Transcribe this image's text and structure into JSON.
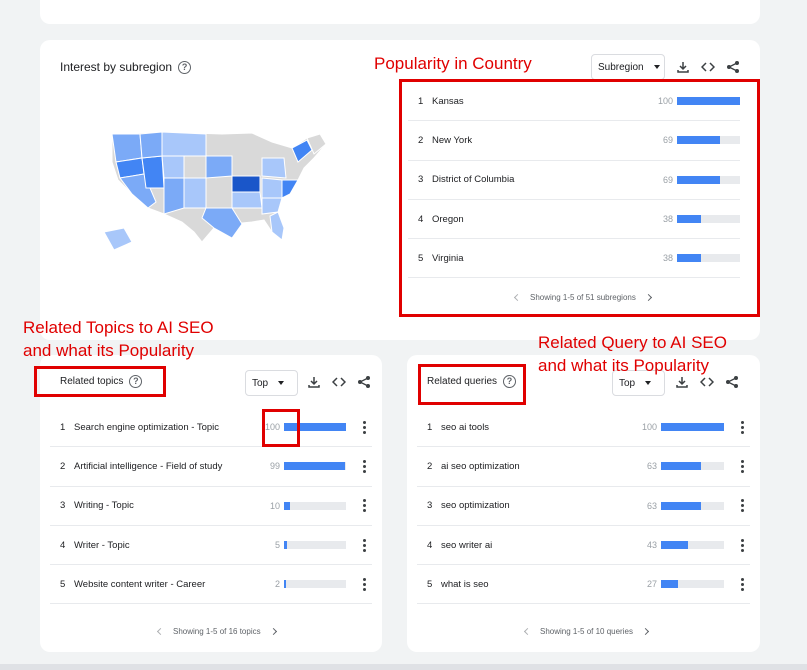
{
  "subregion": {
    "title": "Interest by subregion",
    "help_icon": "help-circle-icon",
    "dropdown_label": "Subregion",
    "pagination": "Showing 1-5 of 51 subregions",
    "items": [
      {
        "rank": "1",
        "name": "Kansas",
        "value": "100",
        "fraction": 1.0
      },
      {
        "rank": "2",
        "name": "New York",
        "value": "69",
        "fraction": 0.69
      },
      {
        "rank": "3",
        "name": "District of Columbia",
        "value": "69",
        "fraction": 0.69
      },
      {
        "rank": "4",
        "name": "Oregon",
        "value": "38",
        "fraction": 0.38
      },
      {
        "rank": "5",
        "name": "Virginia",
        "value": "38",
        "fraction": 0.38
      }
    ],
    "map_colors": {
      "light": "#a8c7fa",
      "medium": "#7baaf7",
      "strong": "#4285f4",
      "max": "#1a56c9",
      "none": "#d9d9d9"
    }
  },
  "topics": {
    "title": "Related topics",
    "dropdown_label": "Top",
    "pagination": "Showing 1-5 of 16 topics",
    "items": [
      {
        "rank": "1",
        "name": "Search engine optimization - Topic",
        "value": "100",
        "fraction": 1.0
      },
      {
        "rank": "2",
        "name": "Artificial intelligence - Field of study",
        "value": "99",
        "fraction": 0.99
      },
      {
        "rank": "3",
        "name": "Writing - Topic",
        "value": "10",
        "fraction": 0.1
      },
      {
        "rank": "4",
        "name": "Writer - Topic",
        "value": "5",
        "fraction": 0.05
      },
      {
        "rank": "5",
        "name": "Website content writer - Career",
        "value": "2",
        "fraction": 0.02
      }
    ]
  },
  "queries": {
    "title": "Related queries",
    "dropdown_label": "Top",
    "pagination": "Showing 1-5 of 10 queries",
    "items": [
      {
        "rank": "1",
        "name": "seo ai tools",
        "value": "100",
        "fraction": 1.0
      },
      {
        "rank": "2",
        "name": "ai seo optimization",
        "value": "63",
        "fraction": 0.63
      },
      {
        "rank": "3",
        "name": "seo optimization",
        "value": "63",
        "fraction": 0.63
      },
      {
        "rank": "4",
        "name": "seo writer ai",
        "value": "43",
        "fraction": 0.43
      },
      {
        "rank": "5",
        "name": "what is seo",
        "value": "27",
        "fraction": 0.27
      }
    ]
  },
  "annotations": {
    "popularity_country": "Popularity in Country",
    "topics_line1": "Related Topics to AI SEO",
    "topics_line2": "and what its Popularity",
    "queries_line1": "Related Query to AI SEO",
    "queries_line2": "and what its Popularity"
  },
  "colors": {
    "bar": "#4285f4",
    "bar_track": "#e8eaed",
    "annotation": "#e00000"
  },
  "icons": [
    "download-icon",
    "embed-code-icon",
    "share-icon",
    "more-vert-icon",
    "chevron-left-icon",
    "chevron-right-icon"
  ]
}
